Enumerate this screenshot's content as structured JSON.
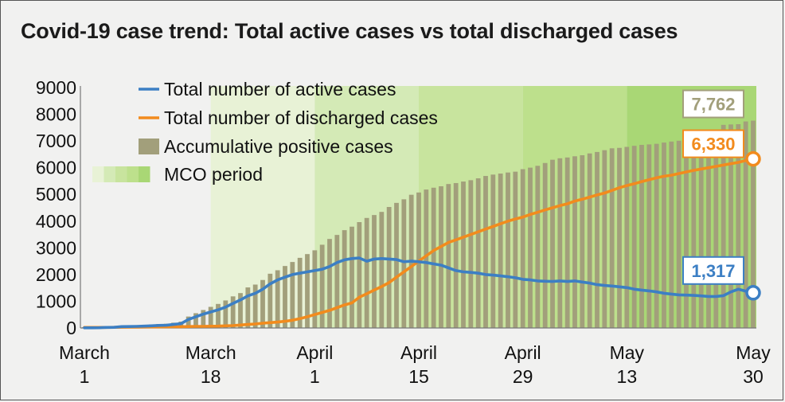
{
  "title": "Covid-19 case trend: Total active cases vs total discharged cases",
  "colors": {
    "active": "#3c7fc4",
    "discharged": "#f28b1d",
    "cumulative": "#a29f7b",
    "mco_phases": [
      "#e8f2d6",
      "#d4eab6",
      "#c8e49e",
      "#bde08c",
      "#a9d775"
    ]
  },
  "chart_data": {
    "type": "bar",
    "ylim": [
      0,
      9000
    ],
    "yticks": [
      "0",
      "1000",
      "2000",
      "3000",
      "4000",
      "5000",
      "6000",
      "7000",
      "8000",
      "9000"
    ],
    "xticks": [
      {
        "line1": "March",
        "line2": "1",
        "day": 0
      },
      {
        "line1": "March",
        "line2": "18",
        "day": 17
      },
      {
        "line1": "April",
        "line2": "1",
        "day": 31
      },
      {
        "line1": "April",
        "line2": "15",
        "day": 45
      },
      {
        "line1": "April",
        "line2": "29",
        "day": 59
      },
      {
        "line1": "May",
        "line2": "13",
        "day": 73
      },
      {
        "line1": "May",
        "line2": "30",
        "day": 90
      }
    ],
    "mco_phases_start_day": [
      17,
      31,
      45,
      59,
      73
    ],
    "legend": [
      {
        "key": "active",
        "label": "Total number of active cases",
        "kind": "line"
      },
      {
        "key": "discharged",
        "label": "Total number of discharged cases",
        "kind": "line"
      },
      {
        "key": "cumulative",
        "label": "Accumulative positive cases",
        "kind": "bar"
      },
      {
        "key": "mco",
        "label": "MCO period",
        "kind": "gradient"
      }
    ],
    "series": [
      {
        "key": "cumulative",
        "name": "Accumulative positive cases",
        "type": "bar",
        "values": [
          29,
          29,
          36,
          50,
          55,
          83,
          93,
          99,
          117,
          129,
          149,
          158,
          197,
          238,
          428,
          553,
          673,
          790,
          900,
          1030,
          1183,
          1306,
          1518,
          1624,
          1796,
          2031,
          2161,
          2320,
          2470,
          2626,
          2766,
          2908,
          3116,
          3333,
          3483,
          3662,
          3793,
          3963,
          4119,
          4228,
          4346,
          4530,
          4683,
          4817,
          4987,
          5072,
          5182,
          5251,
          5305,
          5389,
          5425,
          5482,
          5532,
          5603,
          5691,
          5742,
          5780,
          5820,
          5851,
          5945,
          6002,
          6071,
          6176,
          6298,
          6353,
          6383,
          6428,
          6467,
          6535,
          6589,
          6656,
          6726,
          6742,
          6779,
          6819,
          6855,
          6872,
          6894,
          6941,
          6978,
          7009,
          7059,
          7137,
          7185,
          7245,
          7417,
          7604,
          7619,
          7629,
          7732,
          7762
        ]
      },
      {
        "key": "active",
        "name": "Total number of active cases",
        "type": "line",
        "values": [
          5,
          5,
          10,
          20,
          25,
          50,
          55,
          60,
          70,
          80,
          95,
          100,
          130,
          160,
          320,
          420,
          520,
          600,
          680,
          780,
          920,
          1050,
          1200,
          1300,
          1450,
          1650,
          1800,
          1900,
          2000,
          2050,
          2100,
          2150,
          2200,
          2300,
          2450,
          2550,
          2600,
          2620,
          2500,
          2580,
          2600,
          2580,
          2560,
          2480,
          2500,
          2480,
          2450,
          2400,
          2350,
          2250,
          2150,
          2100,
          2080,
          2050,
          2000,
          1980,
          1950,
          1920,
          1880,
          1820,
          1800,
          1760,
          1750,
          1740,
          1760,
          1740,
          1760,
          1720,
          1680,
          1620,
          1590,
          1570,
          1540,
          1510,
          1450,
          1420,
          1390,
          1350,
          1300,
          1270,
          1240,
          1230,
          1220,
          1200,
          1180,
          1180,
          1210,
          1350,
          1450,
          1380,
          1317
        ]
      },
      {
        "key": "discharged",
        "name": "Total number of discharged cases",
        "type": "line",
        "values": [
          20,
          20,
          22,
          22,
          24,
          28,
          30,
          32,
          35,
          38,
          40,
          42,
          45,
          48,
          55,
          60,
          60,
          65,
          70,
          80,
          90,
          110,
          130,
          150,
          180,
          200,
          220,
          250,
          290,
          350,
          420,
          500,
          580,
          660,
          760,
          860,
          940,
          1150,
          1280,
          1420,
          1550,
          1700,
          1900,
          2100,
          2300,
          2500,
          2700,
          2900,
          3050,
          3200,
          3300,
          3400,
          3500,
          3600,
          3700,
          3800,
          3900,
          4000,
          4080,
          4150,
          4250,
          4330,
          4420,
          4500,
          4580,
          4650,
          4750,
          4820,
          4900,
          4980,
          5050,
          5150,
          5250,
          5330,
          5400,
          5480,
          5550,
          5620,
          5680,
          5720,
          5780,
          5840,
          5900,
          5950,
          6000,
          6050,
          6100,
          6150,
          6200,
          6270,
          6330
        ]
      }
    ],
    "end_labels": [
      {
        "key": "cumulative",
        "text": "7,762"
      },
      {
        "key": "discharged",
        "text": "6,330"
      },
      {
        "key": "active",
        "text": "1,317"
      }
    ]
  }
}
